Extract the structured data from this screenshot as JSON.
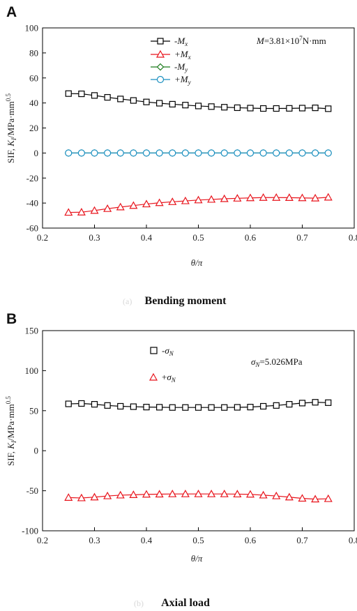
{
  "chart_data": [
    {
      "panel_letter": "A",
      "type": "line",
      "caption_ghost": "(a)",
      "caption": "Bending moment",
      "annotation": "M=3.81×10⁷N·mm",
      "xlabel": "θ/π",
      "ylabel": "SIF, K_I/MPa·mm^0.5",
      "xlim": [
        0.2,
        0.8
      ],
      "ylim": [
        -60,
        100
      ],
      "x_ticks": [
        "0.2",
        "0.3",
        "0.4",
        "0.5",
        "0.6",
        "0.7",
        "0.8"
      ],
      "y_ticks": [
        "-60",
        "-40",
        "-20",
        "0",
        "20",
        "40",
        "60",
        "80",
        "100"
      ],
      "grid": false,
      "legend_position": "top-left",
      "x": [
        0.25,
        0.275,
        0.3,
        0.325,
        0.35,
        0.375,
        0.4,
        0.425,
        0.45,
        0.475,
        0.5,
        0.525,
        0.55,
        0.575,
        0.6,
        0.625,
        0.65,
        0.675,
        0.7,
        0.725,
        0.75
      ],
      "series": [
        {
          "name": "-Mx",
          "color": "#000000",
          "marker": "square",
          "values": [
            47.5,
            47.3,
            46.0,
            44.5,
            43.2,
            42.0,
            40.8,
            39.8,
            39.0,
            38.3,
            37.6,
            37.1,
            36.6,
            36.2,
            35.9,
            35.6,
            35.6,
            35.7,
            35.9,
            36.1,
            35.4
          ]
        },
        {
          "name": "+Mx",
          "color": "#e8141c",
          "marker": "triangle",
          "values": [
            -47.5,
            -47.3,
            -46.0,
            -44.5,
            -43.2,
            -42.0,
            -40.8,
            -39.8,
            -39.0,
            -38.3,
            -37.6,
            -37.1,
            -36.6,
            -36.2,
            -35.9,
            -35.6,
            -35.6,
            -35.7,
            -35.9,
            -36.1,
            -35.4
          ]
        },
        {
          "name": "-My",
          "color": "#1a7a1a",
          "marker": "diamond",
          "values": [
            0,
            0,
            0,
            0,
            0,
            0,
            0,
            0,
            0,
            0,
            0,
            0,
            0,
            0,
            0,
            0,
            0,
            0,
            0,
            0,
            0
          ]
        },
        {
          "name": "+My",
          "color": "#1a8fc0",
          "marker": "circle",
          "values": [
            0,
            0,
            0,
            0,
            0,
            0,
            0,
            0,
            0,
            0,
            0,
            0,
            0,
            0,
            0,
            0,
            0,
            0,
            0,
            0,
            0
          ]
        }
      ]
    },
    {
      "panel_letter": "B",
      "type": "line",
      "caption_ghost": "(b)",
      "caption": "Axial load",
      "annotation": "σN=5.026MPa",
      "xlabel": "θ/π",
      "ylabel": "SIF, K_I/MPa·mm^0.5",
      "xlim": [
        0.2,
        0.8
      ],
      "ylim": [
        -100,
        150
      ],
      "x_ticks": [
        "0.2",
        "0.3",
        "0.4",
        "0.5",
        "0.6",
        "0.7",
        "0.8"
      ],
      "y_ticks": [
        "-100",
        "-50",
        "0",
        "50",
        "100",
        "150"
      ],
      "grid": false,
      "legend_position": "top-left",
      "x": [
        0.25,
        0.275,
        0.3,
        0.325,
        0.35,
        0.375,
        0.4,
        0.425,
        0.45,
        0.475,
        0.5,
        0.525,
        0.55,
        0.575,
        0.6,
        0.625,
        0.65,
        0.675,
        0.7,
        0.725,
        0.75
      ],
      "series": [
        {
          "name": "-σN",
          "color": "#000000",
          "marker": "square",
          "values": [
            58.5,
            59.0,
            58.0,
            56.5,
            55.5,
            55.0,
            54.5,
            54.3,
            54.0,
            54.0,
            54.0,
            54.0,
            54.0,
            54.2,
            54.5,
            55.5,
            56.5,
            58.0,
            59.5,
            60.5,
            60.0
          ]
        },
        {
          "name": "+σN",
          "color": "#e8141c",
          "marker": "triangle",
          "values": [
            -58.5,
            -59.0,
            -58.0,
            -56.5,
            -55.5,
            -55.0,
            -54.5,
            -54.3,
            -54.0,
            -54.0,
            -54.0,
            -54.0,
            -54.0,
            -54.2,
            -54.5,
            -55.5,
            -56.5,
            -58.0,
            -59.5,
            -60.5,
            -60.0
          ]
        }
      ]
    }
  ]
}
